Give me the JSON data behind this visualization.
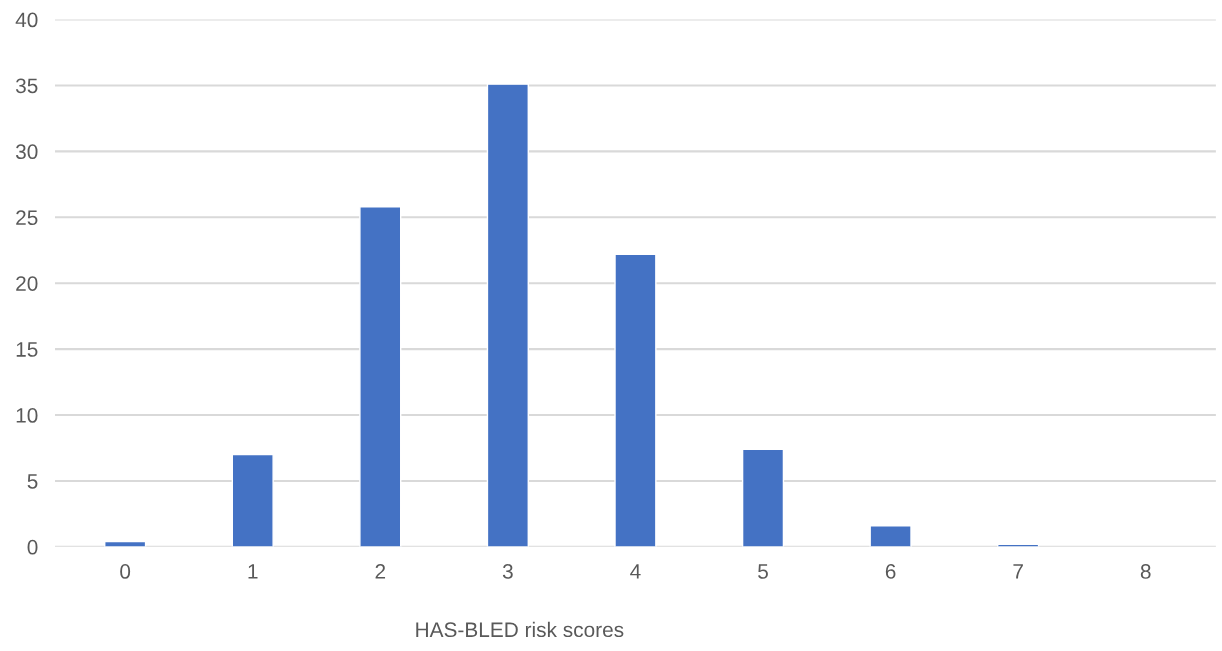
{
  "chart_data": {
    "type": "bar",
    "xlabel": "HAS-BLED risk scores",
    "categories": [
      "0",
      "1",
      "2",
      "3",
      "4",
      "5",
      "6",
      "7",
      "8"
    ],
    "values": [
      0.4,
      7.0,
      25.8,
      35.1,
      22.2,
      7.4,
      1.6,
      0.2,
      null
    ],
    "color": "#4472c4",
    "ylim": [
      0,
      40
    ],
    "yticks": [
      0,
      5,
      10,
      15,
      20,
      25,
      30,
      35,
      40
    ],
    "grid": "y"
  }
}
